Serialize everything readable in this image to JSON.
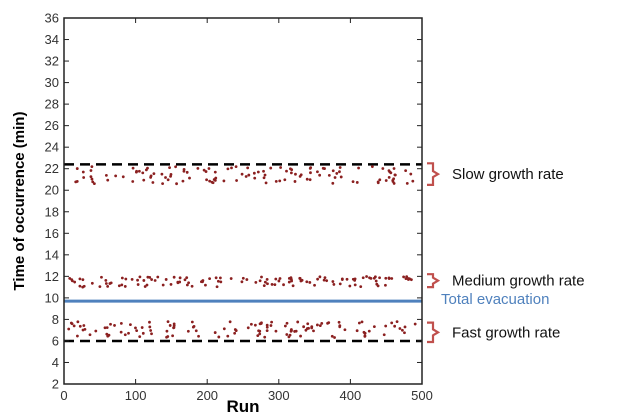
{
  "chart_data": {
    "type": "scatter",
    "xlabel": "Run",
    "ylabel": "Time of occurrence (min)",
    "xlim": [
      0,
      500
    ],
    "ylim": [
      2,
      36
    ],
    "x_ticks": [
      0,
      100,
      200,
      300,
      400,
      500
    ],
    "y_ticks": [
      2,
      4,
      6,
      8,
      10,
      12,
      14,
      16,
      18,
      20,
      22,
      24,
      26,
      28,
      30,
      32,
      34,
      36
    ],
    "grid": false,
    "marker_color": "#8b2020",
    "reference_lines": [
      {
        "y": 22.4,
        "style": "dashed",
        "color": "#000000",
        "label": ""
      },
      {
        "y": 9.7,
        "style": "solid",
        "color": "#4f81bd",
        "label": "Total evacuation"
      },
      {
        "y": 6.0,
        "style": "dashed",
        "color": "#000000",
        "label": ""
      }
    ],
    "groups": [
      {
        "label": "Slow growth rate",
        "y_range": [
          20.6,
          22.2
        ],
        "bracket_range": [
          20.5,
          22.5
        ]
      },
      {
        "label": "Medium growth rate",
        "y_range": [
          11.0,
          12.0
        ],
        "bracket_range": [
          11.0,
          12.2
        ]
      },
      {
        "label": "Fast growth rate",
        "y_range": [
          6.3,
          7.8
        ],
        "bracket_range": [
          5.9,
          7.7
        ]
      }
    ],
    "points_per_group": 130
  }
}
